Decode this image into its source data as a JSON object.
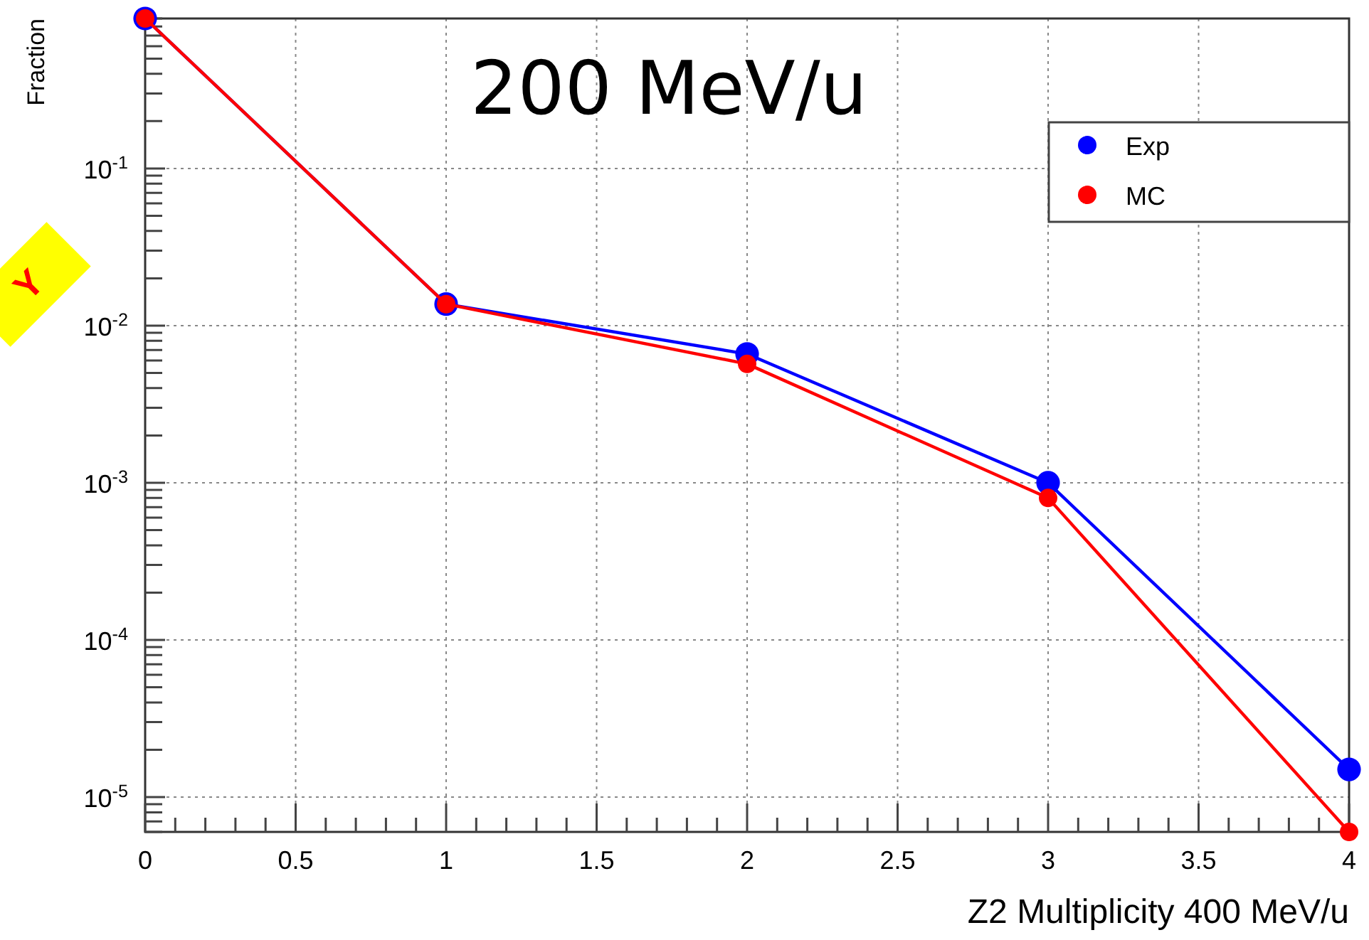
{
  "chart_data": {
    "type": "line",
    "title": "200 MeV/u",
    "xlabel": "Z2 Multiplicity 400 MeV/u",
    "ylabel": "Fraction",
    "x": [
      0,
      1,
      2,
      3,
      4
    ],
    "series": [
      {
        "name": "Exp",
        "color": "#0000ff",
        "values": [
          0.9,
          0.0137,
          0.0066,
          0.001,
          1.5e-05
        ]
      },
      {
        "name": "MC",
        "color": "#ff0000",
        "values": [
          0.9,
          0.0137,
          0.0057,
          0.0008,
          6e-06
        ]
      }
    ],
    "xlim": [
      0,
      4
    ],
    "xticks": [
      0,
      0.5,
      1,
      1.5,
      2,
      2.5,
      3,
      3.5,
      4
    ],
    "ylim": [
      6e-06,
      0.9
    ],
    "yticks": [
      {
        "value": 0.1,
        "label": "10$^{-1}$"
      },
      {
        "value": 0.01,
        "label": "10$^{-2}$"
      },
      {
        "value": 0.001,
        "label": "10$^{-3}$"
      },
      {
        "value": 0.0001,
        "label": "10$^{-4}$"
      },
      {
        "value": 1e-05,
        "label": "10$^{-5}$"
      }
    ],
    "log": "y",
    "grid": true,
    "legend": "top right",
    "marker": "circle",
    "line_style": "solid",
    "annotations": [
      "Y"
    ]
  }
}
